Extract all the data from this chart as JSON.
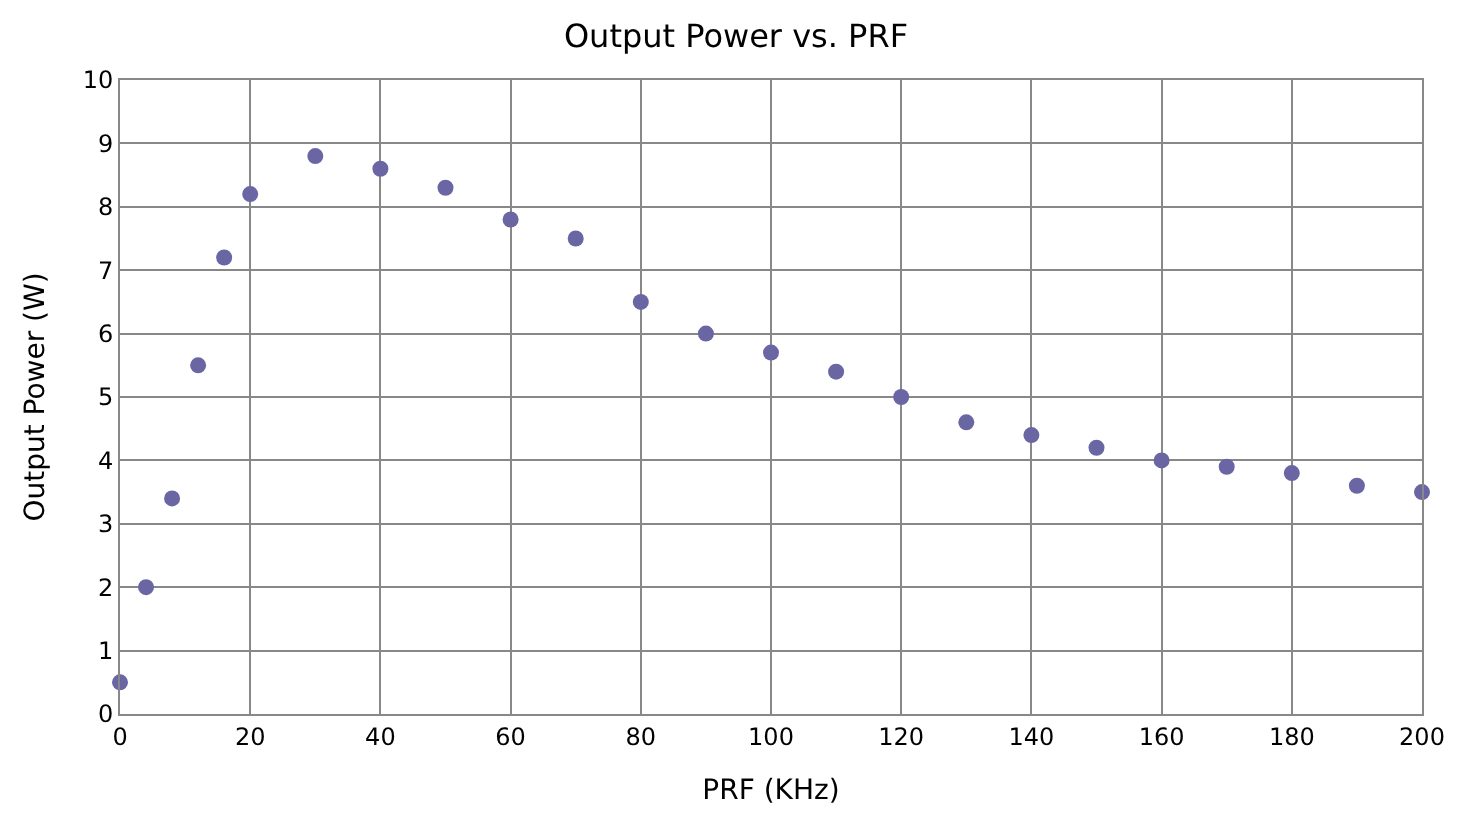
{
  "chart_data": {
    "type": "scatter",
    "title": "Output Power vs. PRF",
    "xlabel": "PRF (KHz)",
    "ylabel": "Output Power (W)",
    "x": [
      0,
      4,
      8,
      12,
      16,
      20,
      30,
      40,
      50,
      60,
      70,
      80,
      90,
      100,
      110,
      120,
      130,
      140,
      150,
      160,
      170,
      180,
      190,
      200
    ],
    "series": [
      {
        "color": "#6a66a3",
        "values": [
          0.5,
          2.0,
          3.4,
          5.5,
          7.2,
          8.2,
          8.8,
          8.6,
          8.3,
          7.8,
          7.5,
          6.5,
          6.0,
          5.7,
          5.4,
          5.0,
          4.6,
          4.4,
          4.2,
          4.0,
          3.9,
          3.8,
          3.6,
          3.5
        ]
      }
    ],
    "xlim": [
      0,
      200
    ],
    "xticks": [
      0,
      20,
      40,
      60,
      80,
      100,
      120,
      140,
      160,
      180,
      200
    ],
    "ylim": [
      0,
      10
    ],
    "yticks": [
      0,
      1,
      2,
      3,
      4,
      5,
      6,
      7,
      8,
      9,
      10
    ],
    "grid": true,
    "marker": "circle"
  }
}
